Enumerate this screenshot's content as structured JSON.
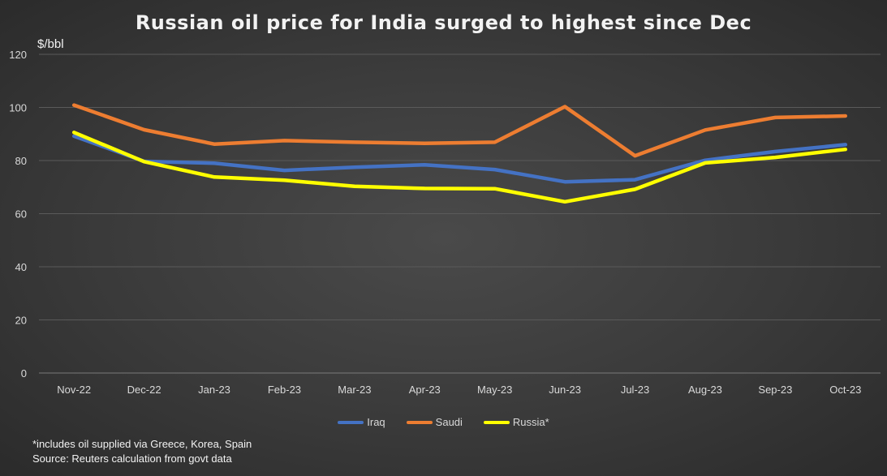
{
  "chart_data": {
    "type": "line",
    "title": "Russian oil price for India surged to highest since Dec",
    "ylabel": "$/bbl",
    "xlabel": "",
    "categories": [
      "Nov-22",
      "Dec-22",
      "Jan-23",
      "Feb-23",
      "Mar-23",
      "Apr-23",
      "May-23",
      "Jun-23",
      "Jul-23",
      "Aug-23",
      "Sep-23",
      "Oct-23"
    ],
    "ylim": [
      0,
      120
    ],
    "yticks": [
      0,
      20,
      40,
      60,
      80,
      100,
      120
    ],
    "grid": "horizontal",
    "legend_position": "bottom",
    "series": [
      {
        "name": "Iraq",
        "color": "#4472c4",
        "values": [
          89.2,
          79.7,
          79.0,
          76.3,
          77.5,
          78.4,
          76.6,
          72.0,
          72.8,
          80.1,
          83.4,
          86.0
        ]
      },
      {
        "name": "Saudi",
        "color": "#ed7d31",
        "values": [
          100.9,
          91.6,
          86.2,
          87.5,
          86.9,
          86.5,
          86.9,
          100.3,
          81.8,
          91.5,
          96.2,
          96.8
        ]
      },
      {
        "name": "Russia*",
        "color": "#ffff00",
        "values": [
          90.6,
          79.6,
          73.8,
          72.6,
          70.3,
          69.5,
          69.4,
          64.5,
          69.2,
          79.1,
          81.2,
          84.2
        ]
      }
    ]
  },
  "notes": {
    "footnote": "*includes oil supplied via Greece, Korea, Spain",
    "source": "Source: Reuters calculation from govt data"
  }
}
